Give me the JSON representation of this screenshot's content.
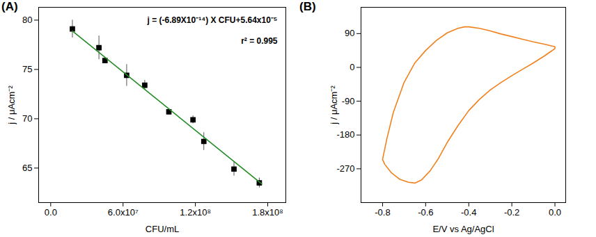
{
  "chart_data": [
    {
      "type": "scatter",
      "title": "(A)",
      "x_label": "CFU/mL",
      "y_label": "j / μAcm⁻²",
      "xlim": [
        -10000000,
        195000000
      ],
      "xticks": [
        {
          "value": 0,
          "label": "0.0"
        },
        {
          "value": 60000000,
          "label": "6.0x10⁷"
        },
        {
          "value": 120000000,
          "label": "1.2x10⁸"
        },
        {
          "value": 180000000,
          "label": "1.8x10⁸"
        }
      ],
      "ylim": [
        61.5,
        81.3
      ],
      "yticks": [
        65,
        70,
        75,
        80
      ],
      "annotations": [
        "j = (-6.89X10⁻¹⁴) X CFU+5.64x10⁻⁵",
        "r² = 0.995"
      ],
      "series": [
        {
          "type": "scatter",
          "color": "#000000",
          "marker": "square",
          "x": [
            18000000,
            40000000,
            45000000,
            63000000,
            78000000,
            98000000,
            118000000,
            127000000,
            152000000,
            173000000
          ],
          "values": [
            79.1,
            77.2,
            75.9,
            74.4,
            73.4,
            70.7,
            69.9,
            67.7,
            64.9,
            63.5
          ],
          "error": [
            0.9,
            1.2,
            0.3,
            1.1,
            0.5,
            0.2,
            0.4,
            0.9,
            0.7,
            0.5
          ]
        },
        {
          "type": "line",
          "color": "#228b22",
          "x": [
            18000000,
            175000000
          ],
          "values": [
            78.9,
            63.4
          ]
        }
      ]
    },
    {
      "type": "line",
      "title": "(B)",
      "x_label": "E/V vs Ag/AgCl",
      "y_label": "j / μAcm⁻²",
      "xlim": [
        -0.9,
        0.05
      ],
      "xticks": [
        -0.8,
        -0.6,
        -0.4,
        -0.2,
        {
          "value": 0,
          "label": "0.0"
        }
      ],
      "ylim": [
        -360,
        160
      ],
      "yticks": [
        -270,
        -180,
        -90,
        0,
        90
      ],
      "series": [
        {
          "type": "line",
          "color": "#f0821e",
          "x": [
            0.0,
            -0.05,
            -0.1,
            -0.15,
            -0.2,
            -0.25,
            -0.3,
            -0.35,
            -0.4,
            -0.42,
            -0.45,
            -0.5,
            -0.55,
            -0.6,
            -0.65,
            -0.7,
            -0.75,
            -0.78,
            -0.8,
            -0.79,
            -0.76,
            -0.72,
            -0.68,
            -0.65,
            -0.62,
            -0.58,
            -0.54,
            -0.5,
            -0.45,
            -0.4,
            -0.35,
            -0.3,
            -0.25,
            -0.2,
            -0.15,
            -0.1,
            -0.05,
            -0.02,
            0.0,
            0.0
          ],
          "values": [
            55,
            62,
            68,
            75,
            82,
            89,
            97,
            104,
            108,
            108,
            104,
            92,
            72,
            45,
            12,
            -40,
            -120,
            -190,
            -245,
            -258,
            -280,
            -298,
            -306,
            -308,
            -300,
            -276,
            -242,
            -200,
            -155,
            -115,
            -85,
            -60,
            -40,
            -22,
            -5,
            12,
            30,
            42,
            50,
            55
          ]
        }
      ]
    }
  ]
}
